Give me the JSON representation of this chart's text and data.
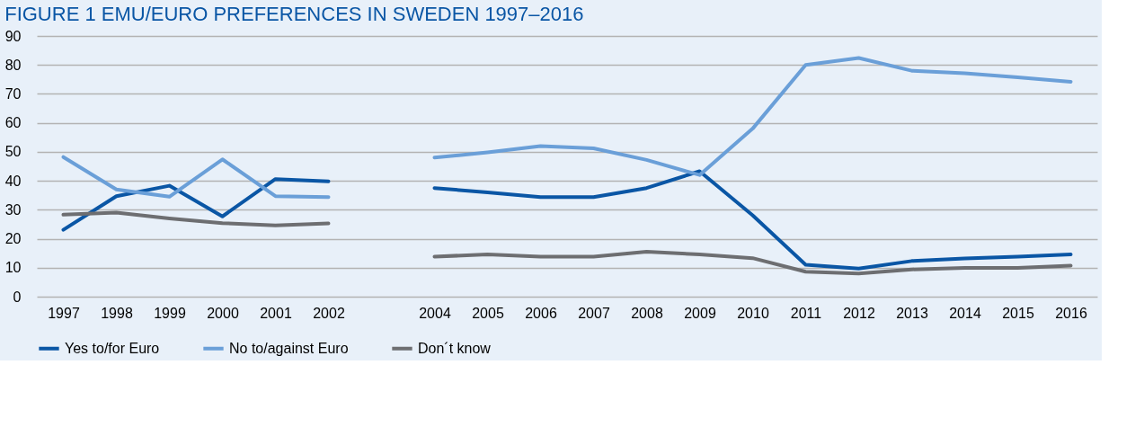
{
  "chart_data": {
    "type": "line",
    "title": "FIGURE 1 EMU/EURO PREFERENCES IN SWEDEN 1997–2016",
    "categories": [
      "1997",
      "1998",
      "1999",
      "2000",
      "2001",
      "2002",
      null,
      "2004",
      "2005",
      "2006",
      "2007",
      "2008",
      "2009",
      "2010",
      "2011",
      "2012",
      "2013",
      "2014",
      "2015",
      "2016"
    ],
    "series": [
      {
        "name": "Yes to/for Euro",
        "color": "#0a56a5",
        "values": [
          23.1,
          34.7,
          38.3,
          27.7,
          40.6,
          39.8,
          null,
          37.5,
          36,
          34.4,
          34.4,
          37.5,
          43.3,
          28.1,
          11,
          9.7,
          12.3,
          13.2,
          13.8,
          14.6
        ]
      },
      {
        "name": "No to/against Euro",
        "color": "#6a9fd8",
        "values": [
          48.2,
          37,
          34.5,
          47.4,
          34.7,
          34.4,
          null,
          48,
          49.8,
          52,
          51.2,
          47.2,
          42,
          58,
          80,
          82.4,
          78,
          77.1,
          75.7,
          74.2
        ]
      },
      {
        "name": "Don´t know",
        "color": "#6d6e71",
        "values": [
          28.3,
          29,
          27,
          25.4,
          24.6,
          25.3,
          null,
          13.8,
          14.6,
          13.8,
          13.8,
          15.5,
          14.6,
          13.3,
          8.6,
          8,
          9.4,
          9.9,
          9.9,
          10.7
        ]
      }
    ],
    "ylim": [
      0,
      90
    ],
    "yticks": [
      0,
      10,
      20,
      30,
      40,
      50,
      60,
      70,
      80,
      90
    ],
    "grid": "y",
    "legend": "bottom",
    "marker": "none",
    "line_style": "solid"
  }
}
